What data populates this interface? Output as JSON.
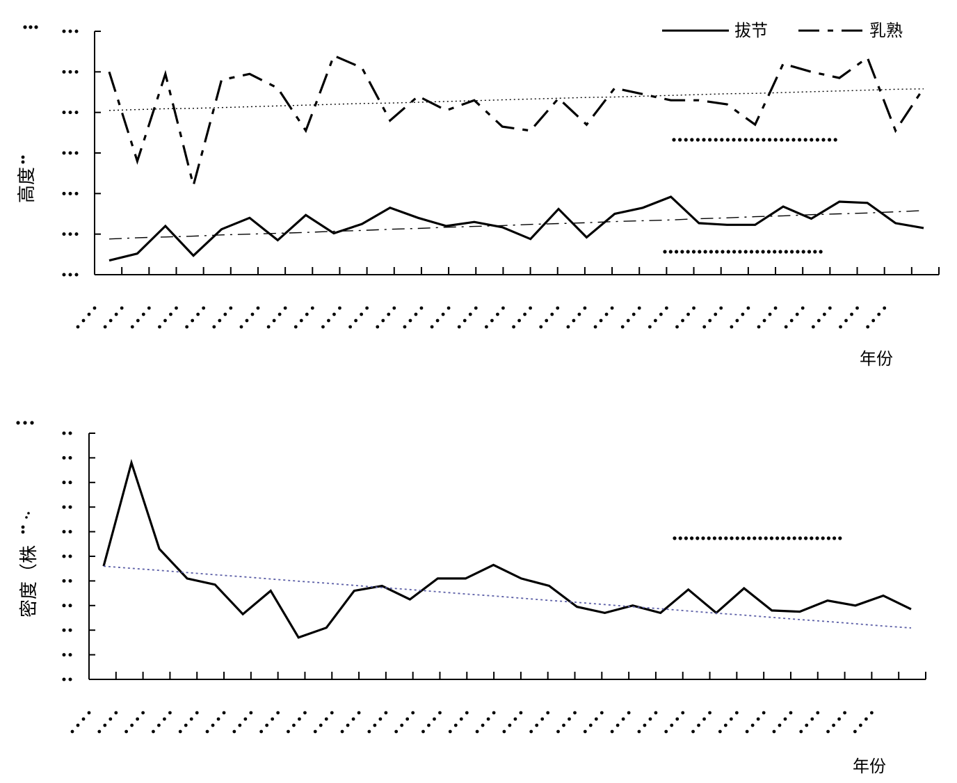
{
  "chart_data": [
    {
      "type": "line",
      "title": "",
      "ylabel": "高度",
      "xlabel": "年份",
      "ylim": [
        0,
        6
      ],
      "y_tick_count": 7,
      "x_count": 30,
      "legend": {
        "placement": "top-right",
        "items": [
          {
            "name": "拔节",
            "style": "solid"
          },
          {
            "name": "乳熟",
            "style": "dash-dot"
          }
        ]
      },
      "series": [
        {
          "name": "拔节",
          "style": "solid",
          "values": [
            0.35,
            0.52,
            1.2,
            0.47,
            1.12,
            1.4,
            0.85,
            1.47,
            1.02,
            1.25,
            1.65,
            1.4,
            1.2,
            1.3,
            1.17,
            0.88,
            1.62,
            0.92,
            1.5,
            1.65,
            1.92,
            1.27,
            1.23,
            1.23,
            1.68,
            1.38,
            1.8,
            1.77,
            1.27,
            1.15
          ]
        },
        {
          "name": "乳熟",
          "style": "dash-dot",
          "values": [
            5.0,
            2.8,
            4.95,
            2.2,
            4.8,
            4.95,
            4.6,
            3.55,
            5.4,
            5.1,
            3.8,
            4.4,
            4.05,
            4.3,
            3.65,
            3.55,
            4.35,
            3.7,
            4.6,
            4.45,
            4.3,
            4.3,
            4.2,
            3.7,
            5.2,
            5.0,
            4.85,
            5.35,
            3.55,
            4.6
          ]
        },
        {
          "name": "",
          "style": "dash-dot-thin",
          "values": [
            0.88,
            0.91,
            0.93,
            0.95,
            0.98,
            1.0,
            1.02,
            1.04,
            1.07,
            1.09,
            1.12,
            1.14,
            1.17,
            1.19,
            1.21,
            1.24,
            1.26,
            1.28,
            1.31,
            1.33,
            1.35,
            1.38,
            1.4,
            1.43,
            1.45,
            1.48,
            1.5,
            1.52,
            1.55,
            1.58
          ]
        },
        {
          "name": "",
          "style": "dotted-thin",
          "values": [
            4.05,
            4.07,
            4.09,
            4.1,
            4.12,
            4.14,
            4.16,
            4.18,
            4.2,
            4.22,
            4.23,
            4.25,
            4.27,
            4.29,
            4.31,
            4.33,
            4.35,
            4.37,
            4.38,
            4.4,
            4.42,
            4.44,
            4.46,
            4.47,
            4.49,
            4.51,
            4.53,
            4.55,
            4.57,
            4.58
          ]
        }
      ]
    },
    {
      "type": "line",
      "title": "",
      "ylabel": "密度（株",
      "xlabel": "年份",
      "ylim": [
        0,
        10
      ],
      "y_tick_count": 11,
      "x_count": 30,
      "series": [
        {
          "name": "",
          "style": "solid",
          "values": [
            4.6,
            8.8,
            5.3,
            4.1,
            3.85,
            2.65,
            3.6,
            1.7,
            2.1,
            3.6,
            3.8,
            3.25,
            4.1,
            4.1,
            4.65,
            4.1,
            3.8,
            2.95,
            2.7,
            3.0,
            2.7,
            3.65,
            2.7,
            3.7,
            2.8,
            2.75,
            3.2,
            3.0,
            3.4,
            2.85
          ]
        },
        {
          "name": "",
          "style": "dotted-blue",
          "values": [
            4.6,
            4.51,
            4.43,
            4.34,
            4.25,
            4.17,
            4.08,
            3.99,
            3.91,
            3.82,
            3.73,
            3.65,
            3.56,
            3.47,
            3.39,
            3.3,
            3.21,
            3.13,
            3.04,
            2.95,
            2.87,
            2.78,
            2.69,
            2.61,
            2.52,
            2.43,
            2.35,
            2.26,
            2.17,
            2.09
          ]
        }
      ]
    }
  ],
  "colors": {
    "line": "#000000",
    "trend_blue": "#5b5ea6"
  }
}
